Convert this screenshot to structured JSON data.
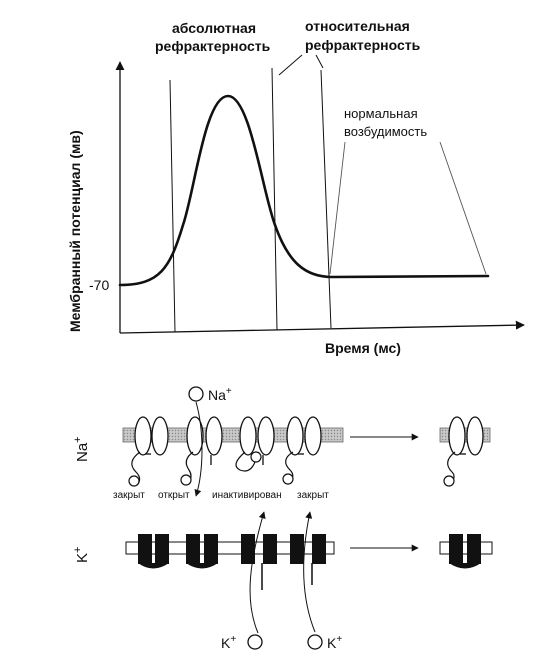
{
  "graph": {
    "ylabel": "Мембранный потенциал (мв)",
    "xlabel": "Время (мс)",
    "tick_rest": "-70",
    "labels": {
      "absolute_1": "абсолютная",
      "absolute_2": "рефрактерность",
      "relative_1": "относительная",
      "relative_2": "рефрактерность",
      "normal_1": "нормальная",
      "normal_2": "возбудимость"
    }
  },
  "na": {
    "side_label": "Na",
    "side_sup": "+",
    "ion": "Na",
    "ion_sup": "+",
    "states": {
      "closed": "закрыт",
      "open": "открыт",
      "inactivated": "инактивирован",
      "closed2": "закрыт"
    }
  },
  "k": {
    "side_label": "K",
    "side_sup": "+",
    "ion_1": "K",
    "ion_1_sup": "+",
    "ion_2": "K",
    "ion_2_sup": "+"
  }
}
